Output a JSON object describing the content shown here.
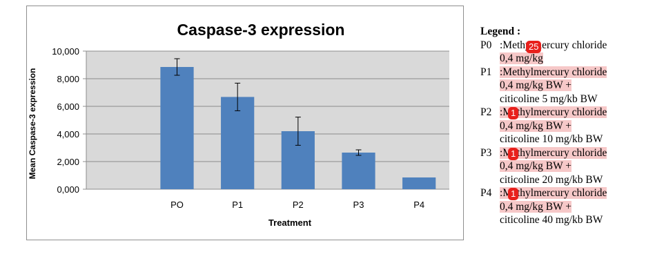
{
  "chart_data": {
    "type": "bar",
    "title": "Caspase-3 expression",
    "xlabel": "Treatment",
    "ylabel": "Mean Caspase-3 expression",
    "categories": [
      "PO",
      "P1",
      "P2",
      "P3",
      "P4"
    ],
    "values": [
      8850,
      6680,
      4200,
      2650,
      850
    ],
    "error": [
      600,
      1000,
      1020,
      200,
      0
    ],
    "ylim": [
      0,
      10000
    ],
    "yticks": [
      "0,000",
      "2,000",
      "4,000",
      "6,000",
      "8,000",
      "10,000"
    ],
    "grid": true,
    "bar_color": "#4f81bd",
    "plot_bg": "#d9d9d9"
  },
  "legend": {
    "title": "Legend :",
    "entries": [
      {
        "code": "P0",
        "line1": ":Methylmercury chloride",
        "line2": "0,4 mg/kg",
        "line3": ""
      },
      {
        "code": "P1",
        "line1": ":Methylmercury chloride",
        "line2": "0,4 mg/kg BW +",
        "line3": "citicoline 5 mg/kb BW"
      },
      {
        "code": "P2",
        "line1": ":Methylmercury chloride",
        "line2": "0,4 mg/kg BW +",
        "line3": "citicoline 10 mg/kb BW"
      },
      {
        "code": "P3",
        "line1": ":Methylmercury chloride",
        "line2": "0,4 mg/kg BW +",
        "line3": "citicoline 20 mg/kb BW"
      },
      {
        "code": "P4",
        "line1": ":Methylmercury chloride",
        "line2": "0,4 mg/kg BW +",
        "line3": "citicoline 40 mg/kb BW"
      }
    ]
  },
  "badges": [
    "25",
    "1",
    "1",
    "1"
  ],
  "highlight_color": "#f6c8c8",
  "badge_color": "#e8201c"
}
